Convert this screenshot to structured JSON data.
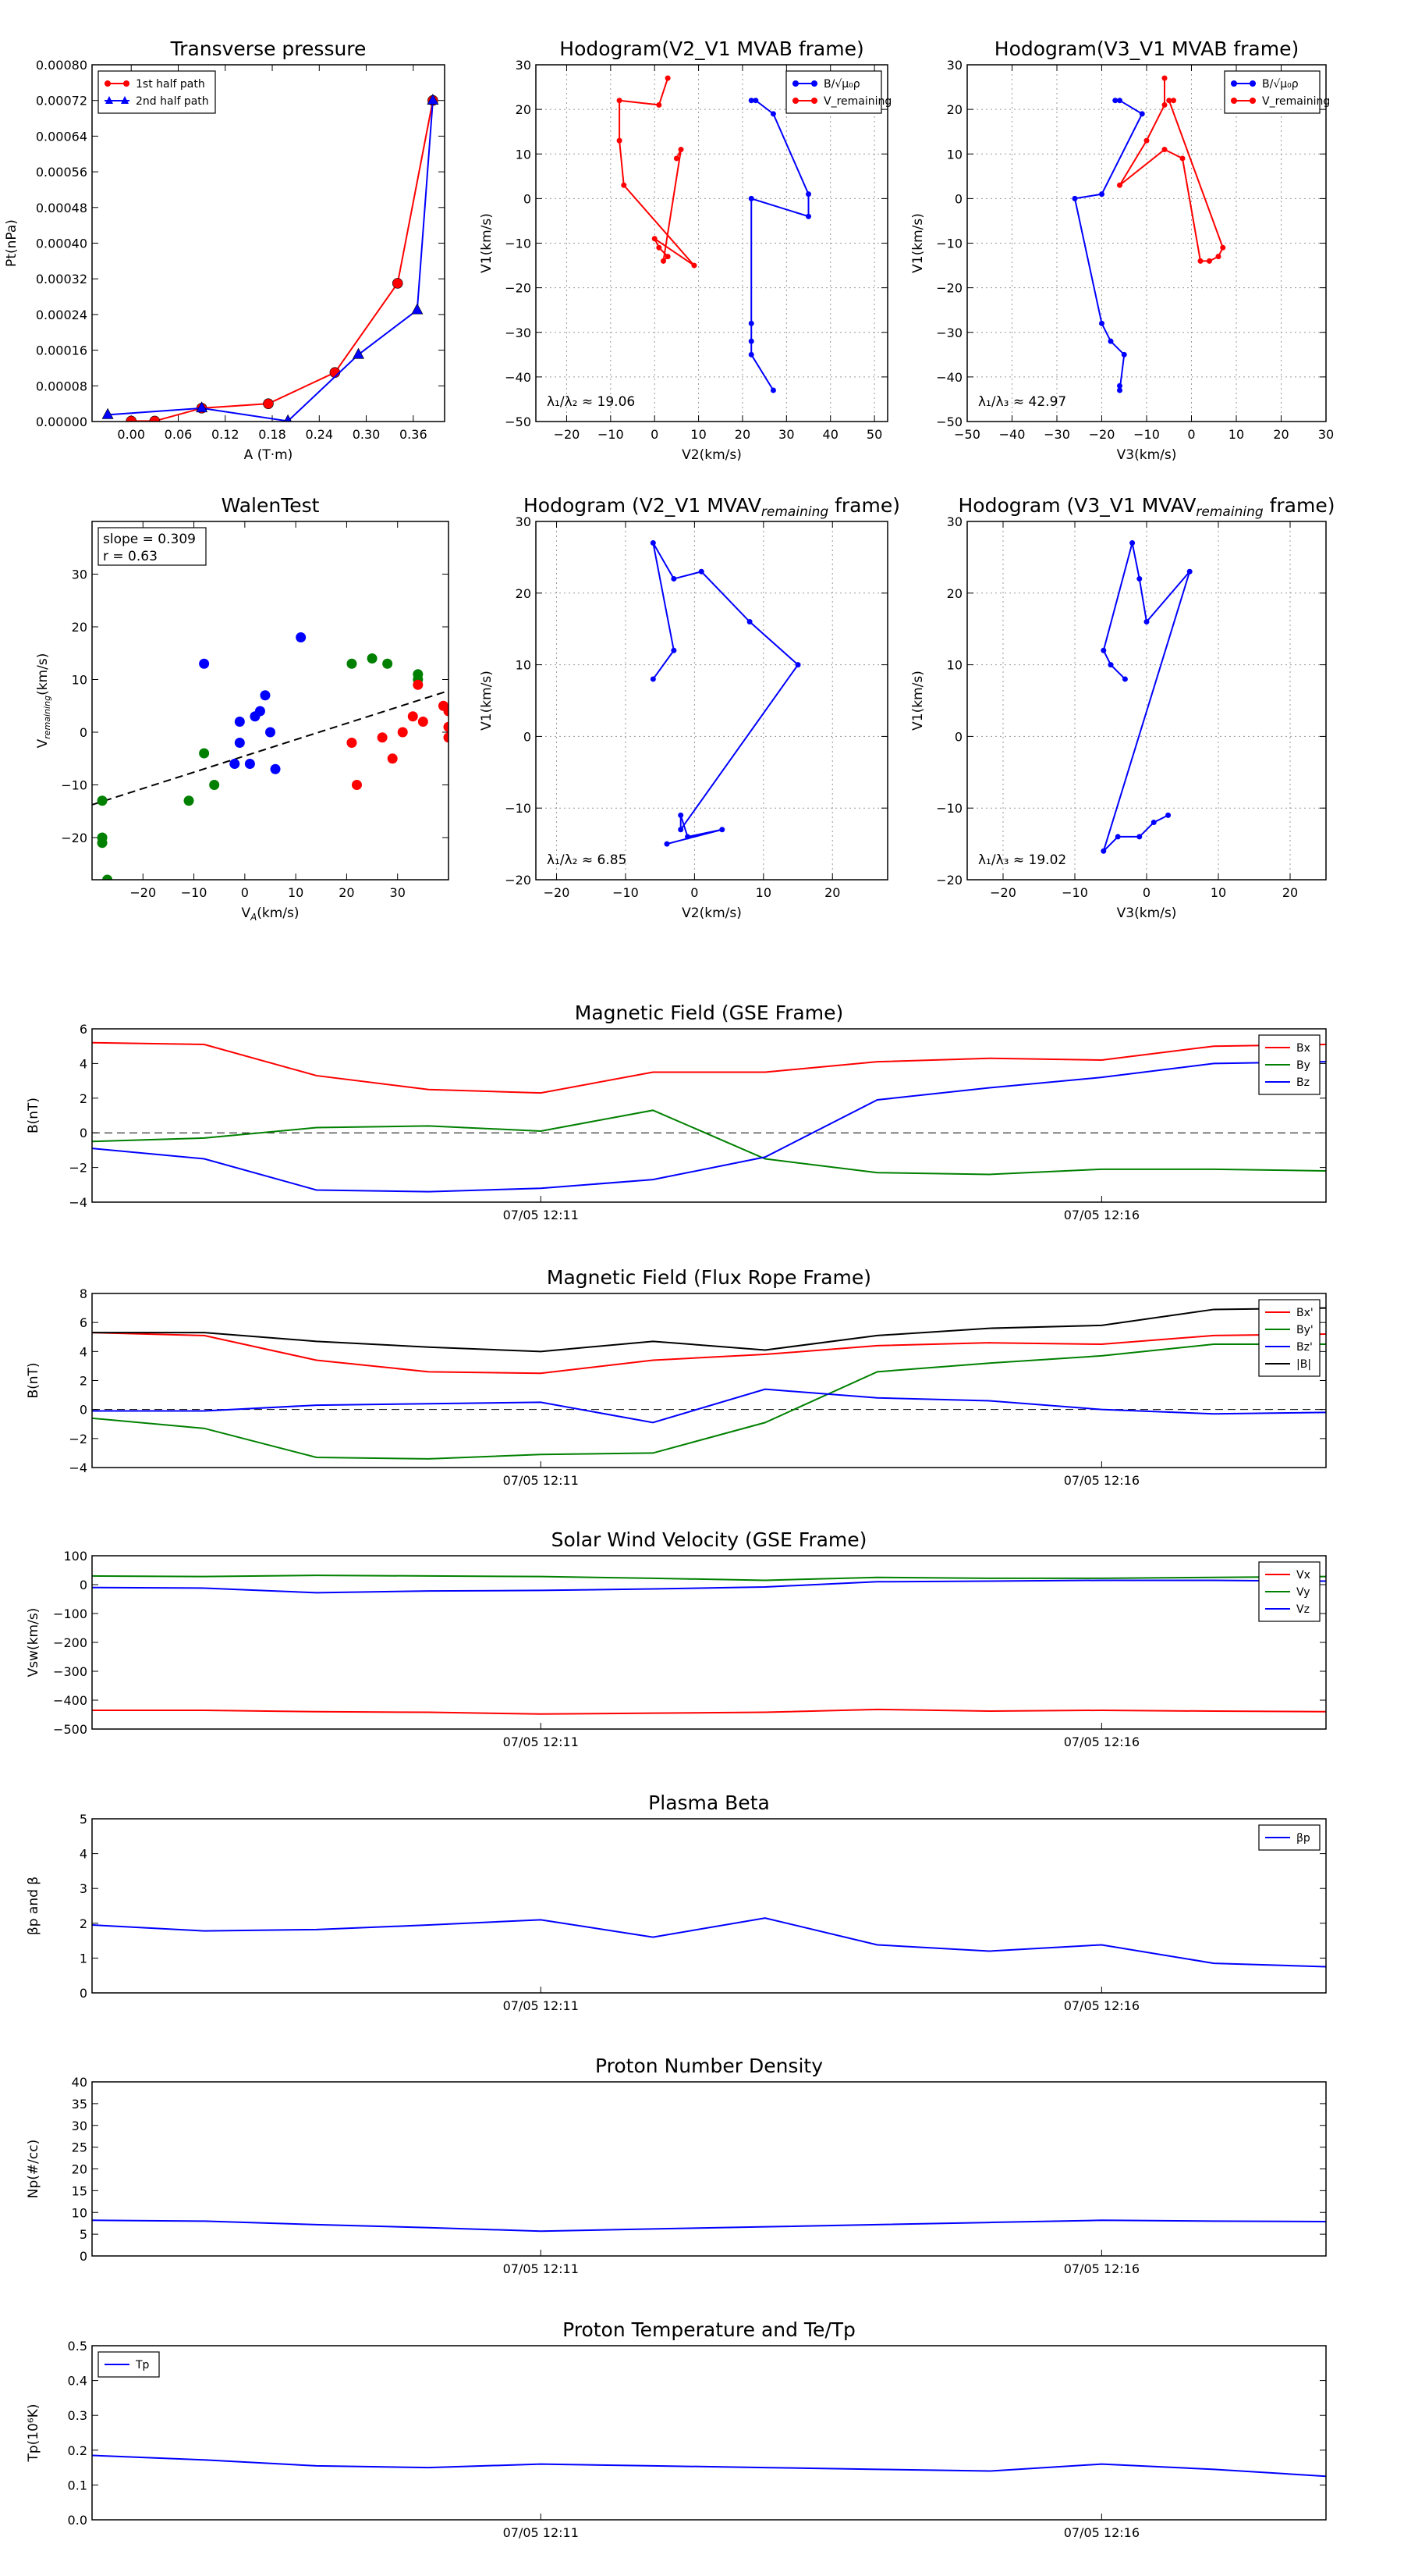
{
  "chart_data": [
    {
      "id": "tp",
      "type": "line",
      "title": "Transverse pressure",
      "xlabel": "A (T·m)",
      "ylabel": "Pt(nPa)",
      "xlim": [
        -0.05,
        0.4
      ],
      "ylim": [
        0,
        0.0008
      ],
      "grid": false,
      "xticks": [
        "0.00",
        "0.06",
        "0.12",
        "0.18",
        "0.24",
        "0.30",
        "0.36"
      ],
      "yticks": [
        "0.00000",
        "0.00008",
        "0.00016",
        "0.00024",
        "0.00032",
        "0.00040",
        "0.00048",
        "0.00056",
        "0.00064",
        "0.00072",
        "0.00080"
      ],
      "legend": "top-left",
      "series": [
        {
          "name": "1st half path",
          "color": "#ff0000",
          "marker": "circle",
          "x": [
            0.0,
            0.03,
            0.09,
            0.175,
            0.26,
            0.34,
            0.385
          ],
          "y": [
            1e-06,
            1e-06,
            3e-05,
            4e-05,
            0.00011,
            0.00031,
            0.00072
          ]
        },
        {
          "name": "2nd half path",
          "color": "#0000ff",
          "marker": "triangle",
          "x": [
            -0.03,
            0.09,
            0.2,
            0.29,
            0.365,
            0.385
          ],
          "y": [
            1.5e-05,
            3e-05,
            1e-06,
            0.00015,
            0.00025,
            0.00072
          ]
        }
      ]
    },
    {
      "id": "h1",
      "type": "line",
      "title": "Hodogram(V2_V1 MVAB frame)",
      "xlabel": "V2(km/s)",
      "ylabel": "V1(km/s)",
      "xlim": [
        -27,
        53
      ],
      "ylim": [
        -50,
        30
      ],
      "grid": true,
      "xticks": [
        "−20",
        "−10",
        "0",
        "10",
        "20",
        "30",
        "40",
        "50"
      ],
      "yticks": [
        "−50",
        "−40",
        "−30",
        "−20",
        "−10",
        "0",
        "10",
        "20",
        "30"
      ],
      "legend": "top-right",
      "annotation": "λ₁/λ₂ ≈ 19.06",
      "series": [
        {
          "name": "B/√μ₀ρ",
          "color": "#0000ff",
          "marker": "circle",
          "x": [
            22,
            23,
            27,
            35,
            35,
            22,
            22,
            22,
            22,
            27
          ],
          "y": [
            22,
            22,
            19,
            1,
            -4,
            0,
            -28,
            -32,
            -35,
            -43
          ]
        },
        {
          "name": "V_remaining",
          "color": "#ff0000",
          "marker": "circle",
          "x": [
            3,
            1,
            -8,
            -8,
            -7,
            9,
            0,
            1,
            3,
            2,
            6,
            5
          ],
          "y": [
            27,
            21,
            22,
            13,
            3,
            -15,
            -9,
            -11,
            -13,
            -14,
            11,
            9
          ]
        }
      ]
    },
    {
      "id": "h2",
      "type": "line",
      "title": "Hodogram(V3_V1 MVAB frame)",
      "xlabel": "V3(km/s)",
      "ylabel": "V1(km/s)",
      "xlim": [
        -50,
        30
      ],
      "ylim": [
        -50,
        30
      ],
      "grid": true,
      "xticks": [
        "−50",
        "−40",
        "−30",
        "−20",
        "−10",
        "0",
        "10",
        "20",
        "30"
      ],
      "yticks": [
        "−50",
        "−40",
        "−30",
        "−20",
        "−10",
        "0",
        "10",
        "20",
        "30"
      ],
      "legend": "top-right",
      "annotation": "λ₁/λ₃ ≈ 42.97",
      "series": [
        {
          "name": "B/√μ₀ρ",
          "color": "#0000ff",
          "marker": "circle",
          "x": [
            -17,
            -16,
            -11,
            -20,
            -26,
            -20,
            -18,
            -15,
            -16,
            -16
          ],
          "y": [
            22,
            22,
            19,
            1,
            0,
            -28,
            -32,
            -35,
            -43,
            -42
          ]
        },
        {
          "name": "V_remaining",
          "color": "#ff0000",
          "marker": "circle",
          "x": [
            -6,
            -6,
            -10,
            -16,
            -6,
            -2,
            2,
            4,
            6,
            7,
            -5,
            -4
          ],
          "y": [
            27,
            21,
            13,
            3,
            11,
            9,
            -14,
            -14,
            -13,
            -11,
            22,
            22
          ]
        }
      ]
    },
    {
      "id": "walen",
      "type": "scatter",
      "title": "WalenTest",
      "xlabel": "V_A(km/s)",
      "ylabel": "V_remaining(km/s)",
      "xlim": [
        -30,
        40
      ],
      "ylim": [
        -28,
        40
      ],
      "grid": false,
      "xticks": [
        "−20",
        "−10",
        "0",
        "10",
        "20",
        "30"
      ],
      "yticks": [
        "−20",
        "−10",
        "0",
        "10",
        "20",
        "30"
      ],
      "annotation": [
        "slope = 0.309",
        "r = 0.63"
      ],
      "fit": {
        "slope": 0.309,
        "intercept": -4.5
      },
      "series": [
        {
          "color": "#0000ff",
          "x": [
            -8,
            11,
            4,
            5,
            3,
            2,
            -1,
            -1,
            1,
            6,
            -2
          ],
          "y": [
            13,
            18,
            7,
            0,
            4,
            3,
            2,
            -2,
            -6,
            -7,
            -6
          ]
        },
        {
          "color": "#008000",
          "x": [
            21,
            25,
            28,
            34,
            34,
            -8,
            -6,
            -11,
            -28,
            -28,
            -27,
            -28
          ],
          "y": [
            13,
            14,
            13,
            11,
            10,
            -4,
            -10,
            -13,
            -20,
            -21,
            -28,
            -13
          ]
        },
        {
          "color": "#ff0000",
          "x": [
            21,
            22,
            27,
            29,
            31,
            33,
            35,
            39,
            40,
            40,
            34,
            40
          ],
          "y": [
            -2,
            -10,
            -1,
            -5,
            0,
            3,
            2,
            5,
            4,
            1,
            9,
            -1
          ]
        }
      ]
    },
    {
      "id": "h3",
      "type": "line",
      "title": "Hodogram (V2_V1 MVAV_remaining frame)",
      "xlabel": "V2(km/s)",
      "ylabel": "V1(km/s)",
      "xlim": [
        -23,
        28
      ],
      "ylim": [
        -20,
        30
      ],
      "grid": true,
      "xticks": [
        "−20",
        "−10",
        "0",
        "10",
        "20"
      ],
      "yticks": [
        "−20",
        "−10",
        "0",
        "10",
        "20",
        "30"
      ],
      "annotation": "λ₁/λ₂ ≈ 6.85",
      "series": [
        {
          "color": "#0000ff",
          "marker": "circle",
          "x": [
            -6,
            -3,
            -6,
            -3,
            1,
            8,
            15,
            -2,
            -2,
            -1,
            4,
            -4
          ],
          "y": [
            8,
            12,
            27,
            22,
            23,
            16,
            10,
            -13,
            -11,
            -14,
            -13,
            -15
          ]
        }
      ]
    },
    {
      "id": "h4",
      "type": "line",
      "title": "Hodogram (V3_V1 MVAV_remaining frame)",
      "xlabel": "V3(km/s)",
      "ylabel": "V1(km/s)",
      "xlim": [
        -25,
        25
      ],
      "ylim": [
        -20,
        30
      ],
      "grid": true,
      "xticks": [
        "−20",
        "−10",
        "0",
        "10",
        "20"
      ],
      "yticks": [
        "−20",
        "−10",
        "0",
        "10",
        "20",
        "30"
      ],
      "annotation": "λ₁/λ₃ ≈ 19.02",
      "series": [
        {
          "color": "#0000ff",
          "marker": "circle",
          "x": [
            -3,
            -5,
            -6,
            -2,
            -1,
            0,
            6,
            -6,
            -4,
            -1,
            1,
            3
          ],
          "y": [
            8,
            10,
            12,
            27,
            22,
            16,
            23,
            -16,
            -14,
            -14,
            -12,
            -11
          ]
        }
      ]
    },
    {
      "id": "mag_gse",
      "type": "line",
      "title": "Magnetic Field (GSE Frame)",
      "xlabel": "",
      "ylabel": "B(nT)",
      "xlim": [
        0,
        11
      ],
      "ylim": [
        -4,
        6
      ],
      "yticks": [
        "−4",
        "−2",
        "0",
        "2",
        "4",
        "6"
      ],
      "x_time_labels": [
        [
          "07/05 12:11",
          4
        ],
        [
          "07/05 12:16",
          9
        ]
      ],
      "zero_line": true,
      "legend": "top-right",
      "x": [
        0,
        1,
        2,
        3,
        4,
        5,
        6,
        7,
        8,
        9,
        10,
        11
      ],
      "series": [
        {
          "name": "Bx",
          "color": "#ff0000",
          "values": [
            5.2,
            5.1,
            3.3,
            2.5,
            2.3,
            3.5,
            3.5,
            4.1,
            4.3,
            4.2,
            5.0,
            5.1
          ]
        },
        {
          "name": "By",
          "color": "#008000",
          "values": [
            -0.5,
            -0.3,
            0.3,
            0.4,
            0.1,
            1.3,
            -1.5,
            -2.3,
            -2.4,
            -2.1,
            -2.1,
            -2.2
          ]
        },
        {
          "name": "Bz",
          "color": "#0000ff",
          "values": [
            -0.9,
            -1.5,
            -3.3,
            -3.4,
            -3.2,
            -2.7,
            -1.4,
            1.9,
            2.6,
            3.2,
            4.0,
            4.1
          ]
        }
      ]
    },
    {
      "id": "mag_fr",
      "type": "line",
      "title": "Magnetic Field (Flux Rope Frame)",
      "xlabel": "",
      "ylabel": "B(nT)",
      "xlim": [
        0,
        11
      ],
      "ylim": [
        -4,
        8
      ],
      "yticks": [
        "−4",
        "−2",
        "0",
        "2",
        "4",
        "6",
        "8"
      ],
      "x_time_labels": [
        [
          "07/05 12:11",
          4
        ],
        [
          "07/05 12:16",
          9
        ]
      ],
      "zero_line": true,
      "legend": "top-right",
      "x": [
        0,
        1,
        2,
        3,
        4,
        5,
        6,
        7,
        8,
        9,
        10,
        11
      ],
      "series": [
        {
          "name": "Bx'",
          "color": "#ff0000",
          "values": [
            5.3,
            5.1,
            3.4,
            2.6,
            2.5,
            3.4,
            3.8,
            4.4,
            4.6,
            4.5,
            5.1,
            5.2
          ]
        },
        {
          "name": "By'",
          "color": "#008000",
          "values": [
            -0.6,
            -1.3,
            -3.3,
            -3.4,
            -3.1,
            -3.0,
            -0.9,
            2.6,
            3.2,
            3.7,
            4.5,
            4.5
          ]
        },
        {
          "name": "Bz'",
          "color": "#0000ff",
          "values": [
            -0.1,
            -0.1,
            0.3,
            0.4,
            0.5,
            -0.9,
            1.4,
            0.8,
            0.6,
            0.0,
            -0.3,
            -0.2
          ]
        },
        {
          "name": "|B|",
          "color": "#000000",
          "values": [
            5.3,
            5.3,
            4.7,
            4.3,
            4.0,
            4.7,
            4.1,
            5.1,
            5.6,
            5.8,
            6.9,
            7.0
          ]
        }
      ]
    },
    {
      "id": "vel",
      "type": "line",
      "title": "Solar Wind Velocity (GSE Frame)",
      "xlabel": "",
      "ylabel": "Vsw(km/s)",
      "xlim": [
        0,
        11
      ],
      "ylim": [
        -500,
        100
      ],
      "yticks": [
        "−500",
        "−400",
        "−300",
        "−200",
        "−100",
        "0",
        "100"
      ],
      "x_time_labels": [
        [
          "07/05 12:11",
          4
        ],
        [
          "07/05 12:16",
          9
        ]
      ],
      "legend": "top-right",
      "x": [
        0,
        1,
        2,
        3,
        4,
        5,
        6,
        7,
        8,
        9,
        10,
        11
      ],
      "series": [
        {
          "name": "Vx",
          "color": "#ff0000",
          "values": [
            -435,
            -435,
            -440,
            -442,
            -448,
            -445,
            -442,
            -432,
            -438,
            -435,
            -438,
            -440
          ]
        },
        {
          "name": "Vy",
          "color": "#008000",
          "values": [
            30,
            28,
            32,
            30,
            28,
            22,
            15,
            25,
            22,
            22,
            25,
            28
          ]
        },
        {
          "name": "Vz",
          "color": "#0000ff",
          "values": [
            -10,
            -12,
            -28,
            -22,
            -20,
            -15,
            -8,
            10,
            12,
            15,
            15,
            12
          ]
        }
      ]
    },
    {
      "id": "beta",
      "type": "line",
      "title": "Plasma Beta",
      "xlabel": "",
      "ylabel": "βp and β",
      "xlim": [
        0,
        11
      ],
      "ylim": [
        0,
        5
      ],
      "yticks": [
        "0",
        "1",
        "2",
        "3",
        "4",
        "5"
      ],
      "x_time_labels": [
        [
          "07/05 12:11",
          4
        ],
        [
          "07/05 12:16",
          9
        ]
      ],
      "legend": "top-right",
      "x": [
        0,
        1,
        2,
        3,
        4,
        5,
        6,
        7,
        8,
        9,
        10,
        11
      ],
      "series": [
        {
          "name": "βp",
          "color": "#0000ff",
          "values": [
            1.95,
            1.78,
            1.82,
            1.95,
            2.1,
            1.6,
            2.15,
            1.38,
            1.2,
            1.38,
            0.85,
            0.75
          ]
        }
      ]
    },
    {
      "id": "np",
      "type": "line",
      "title": "Proton Number Density",
      "xlabel": "",
      "ylabel": "Np(#/cc)",
      "xlim": [
        0,
        11
      ],
      "ylim": [
        0,
        40
      ],
      "yticks": [
        "0",
        "5",
        "10",
        "15",
        "20",
        "25",
        "30",
        "35",
        "40"
      ],
      "x_time_labels": [
        [
          "07/05 12:11",
          4
        ],
        [
          "07/05 12:16",
          9
        ]
      ],
      "x": [
        0,
        1,
        2,
        3,
        4,
        5,
        6,
        7,
        8,
        9,
        10,
        11
      ],
      "series": [
        {
          "name": "Np",
          "color": "#0000ff",
          "values": [
            8.2,
            8.0,
            7.2,
            6.5,
            5.7,
            6.2,
            6.7,
            7.2,
            7.7,
            8.2,
            8.0,
            7.9
          ]
        }
      ]
    },
    {
      "id": "tp_temp",
      "type": "line",
      "title": "Proton Temperature and Te/Tp",
      "xlabel": "",
      "ylabel": "Tp(10⁶K)",
      "xlim": [
        0,
        11
      ],
      "ylim": [
        0,
        0.5
      ],
      "yticks": [
        "0.0",
        "0.1",
        "0.2",
        "0.3",
        "0.4",
        "0.5"
      ],
      "x_time_labels": [
        [
          "07/05 12:11",
          4
        ],
        [
          "07/05 12:16",
          9
        ]
      ],
      "legend": "top-left",
      "x": [
        0,
        1,
        2,
        3,
        4,
        5,
        6,
        7,
        8,
        9,
        10,
        11
      ],
      "series": [
        {
          "name": "Tp",
          "color": "#0000ff",
          "values": [
            0.185,
            0.172,
            0.155,
            0.15,
            0.16,
            0.155,
            0.15,
            0.145,
            0.14,
            0.16,
            0.145,
            0.125
          ]
        }
      ]
    }
  ]
}
